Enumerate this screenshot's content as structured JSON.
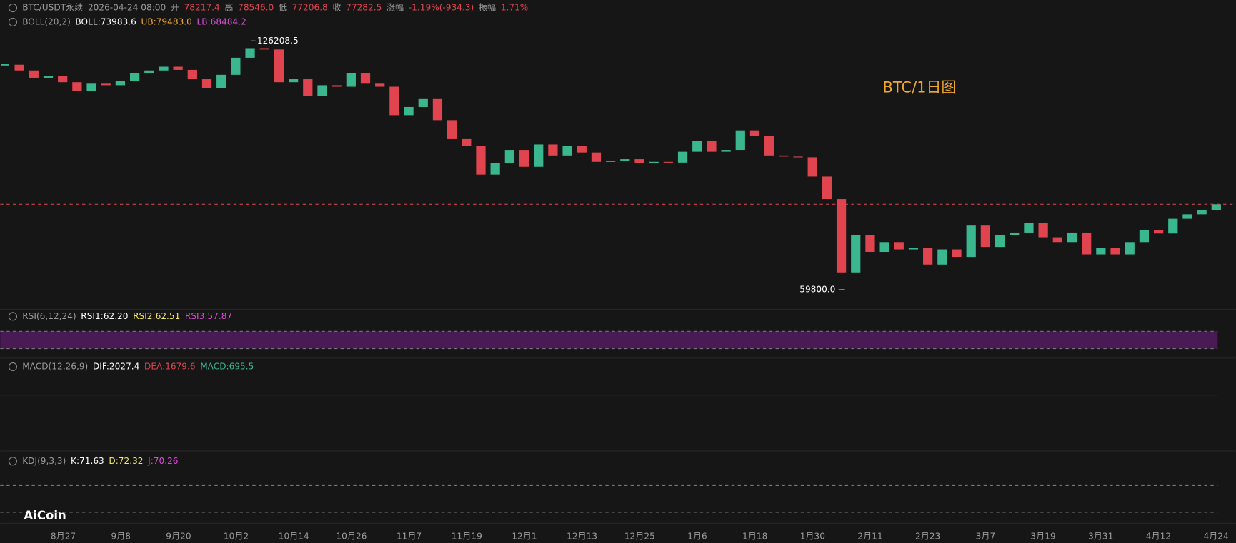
{
  "chart_data": {
    "type": "candlestick",
    "legends": [
      [
        {
          "text": "BTC/USDT永续",
          "color": "#9a9a9a"
        },
        {
          "text": "2026-04-24 08:00",
          "color": "#9a9a9a"
        },
        {
          "text": "开",
          "color": "#9a9a9a"
        },
        {
          "text": "78217.4",
          "color": "#e0454f"
        },
        {
          "text": "高",
          "color": "#9a9a9a"
        },
        {
          "text": "78546.0",
          "color": "#e0454f"
        },
        {
          "text": "低",
          "color": "#9a9a9a"
        },
        {
          "text": "77206.8",
          "color": "#e0454f"
        },
        {
          "text": "收",
          "color": "#9a9a9a"
        },
        {
          "text": "77282.5",
          "color": "#e0454f"
        },
        {
          "text": "涨幅",
          "color": "#9a9a9a"
        },
        {
          "text": "-1.19%(-934.3)",
          "color": "#e0454f"
        },
        {
          "text": "振幅",
          "color": "#9a9a9a"
        },
        {
          "text": "1.71%",
          "color": "#e0454f"
        }
      ],
      [
        {
          "text": "BOLL(20,2)",
          "color": "#9a9a9a"
        },
        {
          "text": "BOLL:73983.6",
          "color": "#ffffff"
        },
        {
          "text": "UB:79483.0",
          "color": "#f0a830"
        },
        {
          "text": "LB:68484.2",
          "color": "#d94fd4"
        }
      ],
      [
        {
          "text": "RSI(6,12,24)",
          "color": "#9a9a9a"
        },
        {
          "text": "RSI1:62.20",
          "color": "#ffffff"
        },
        {
          "text": "RSI2:62.51",
          "color": "#f5e663"
        },
        {
          "text": "RSI3:57.87",
          "color": "#d94fd4"
        }
      ],
      [
        {
          "text": "MACD(12,26,9)",
          "color": "#9a9a9a"
        },
        {
          "text": "DIF:2027.4",
          "color": "#ffffff"
        },
        {
          "text": "DEA:1679.6",
          "color": "#e0454f"
        },
        {
          "text": "MACD:695.5",
          "color": "#3bb78f"
        }
      ],
      [
        {
          "text": "KDJ(9,3,3)",
          "color": "#9a9a9a"
        },
        {
          "text": "K:71.63",
          "color": "#ffffff"
        },
        {
          "text": "D:72.32",
          "color": "#f5e663"
        },
        {
          "text": "J:70.26",
          "color": "#d94fd4"
        }
      ]
    ],
    "watermark": "BTC/1日图",
    "logo": "AiCoin",
    "categories": [
      "8月27",
      "9月8",
      "9月20",
      "10月2",
      "10月14",
      "10月26",
      "11月7",
      "11月19",
      "12月1",
      "12月13",
      "12月25",
      "1月6",
      "1月18",
      "1月30",
      "2月11",
      "2月23",
      "3月7",
      "3月19",
      "3月31",
      "4月12",
      "4月24"
    ],
    "close": [
      117500,
      115500,
      113000,
      113500,
      111500,
      108500,
      111000,
      110500,
      112000,
      114500,
      115500,
      116800,
      115700,
      112500,
      109500,
      114000,
      120000,
      123500,
      123000,
      111500,
      112500,
      107000,
      110500,
      110000,
      114500,
      111000,
      110000,
      101000,
      103500,
      106000,
      99500,
      94000,
      92000,
      84500,
      87500,
      91000,
      86500,
      92500,
      89500,
      92000,
      90300,
      87800,
      88000,
      88500,
      87500,
      87800,
      87600,
      90500,
      93500,
      90500,
      91000,
      96500,
      95000,
      89500,
      89200,
      89000,
      84000,
      78500,
      63000,
      70500,
      67000,
      69000,
      67500,
      67800,
      64500,
      67500,
      66000,
      72500,
      68000,
      70500,
      71000,
      73000,
      70000,
      69000,
      71000,
      66500,
      67800,
      66500,
      69000,
      71500,
      70800,
      74000,
      75000,
      76000,
      77300
    ],
    "high_label": 126208.5,
    "low_label": {
      "value": 59800,
      "label": "59800.0"
    },
    "up_color": "#3bb78f",
    "down_color": "#e0454f",
    "ylim": [
      56400,
      142700
    ],
    "log_scale": true
  }
}
